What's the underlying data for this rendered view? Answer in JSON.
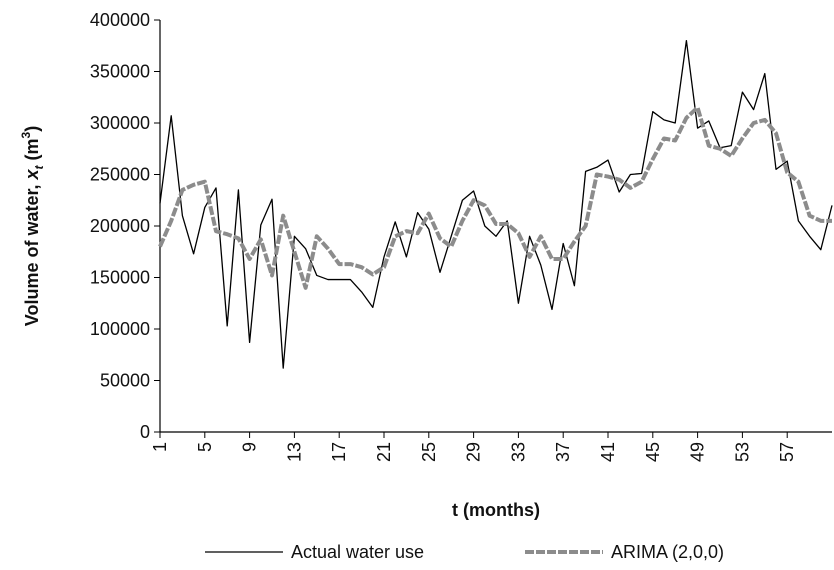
{
  "chart_data": {
    "type": "line",
    "y_label": [
      "Volume of water, ",
      "x",
      "t",
      " (m",
      "3",
      ")"
    ],
    "x_label": "t (months)",
    "x": [
      1,
      2,
      3,
      4,
      5,
      6,
      7,
      8,
      9,
      10,
      11,
      12,
      13,
      14,
      15,
      16,
      17,
      18,
      19,
      20,
      21,
      22,
      23,
      24,
      25,
      26,
      27,
      28,
      29,
      30,
      31,
      32,
      33,
      34,
      35,
      36,
      37,
      38,
      39,
      40,
      41,
      42,
      43,
      44,
      45,
      46,
      47,
      48,
      49,
      50,
      51,
      52,
      53,
      54,
      55,
      56,
      57,
      58,
      59,
      60,
      61
    ],
    "series": [
      {
        "name": "Actual water use",
        "color": "#000000",
        "dashed": false,
        "values": [
          222000,
          307000,
          210000,
          173000,
          218000,
          237000,
          103000,
          235000,
          87000,
          201000,
          226000,
          62000,
          190000,
          178000,
          152000,
          148000,
          148000,
          148000,
          136000,
          121000,
          170000,
          204000,
          170000,
          213000,
          197000,
          155000,
          190000,
          225000,
          234000,
          200000,
          190000,
          205000,
          125000,
          190000,
          162000,
          119000,
          183000,
          142000,
          253000,
          257000,
          264000,
          233000,
          250000,
          251000,
          311000,
          303000,
          300000,
          380000,
          295000,
          302000,
          276000,
          278000,
          330000,
          313000,
          348000,
          255000,
          263000,
          205000,
          190000,
          177000,
          220000
        ]
      },
      {
        "name": "ARIMA (2,0,0)",
        "color": "#8c8c8c",
        "dashed": true,
        "values": [
          180000,
          205000,
          235000,
          240000,
          243000,
          195000,
          192000,
          188000,
          168000,
          187000,
          152000,
          210000,
          175000,
          140000,
          190000,
          178000,
          163000,
          163000,
          160000,
          153000,
          160000,
          190000,
          195000,
          193000,
          212000,
          188000,
          180000,
          205000,
          225000,
          220000,
          202000,
          202000,
          193000,
          170000,
          190000,
          168000,
          168000,
          185000,
          200000,
          250000,
          248000,
          245000,
          237000,
          243000,
          265000,
          285000,
          283000,
          305000,
          315000,
          278000,
          275000,
          268000,
          285000,
          300000,
          303000,
          290000,
          252000,
          243000,
          210000,
          205000,
          205000
        ]
      }
    ],
    "xlim": [
      1,
      61
    ],
    "xticks": [
      1,
      5,
      9,
      13,
      17,
      21,
      25,
      29,
      33,
      37,
      41,
      45,
      49,
      53,
      57
    ],
    "ylim": [
      0,
      400000
    ],
    "yticks": [
      0,
      50000,
      100000,
      150000,
      200000,
      250000,
      300000,
      350000,
      400000
    ],
    "legend": "bottom"
  }
}
